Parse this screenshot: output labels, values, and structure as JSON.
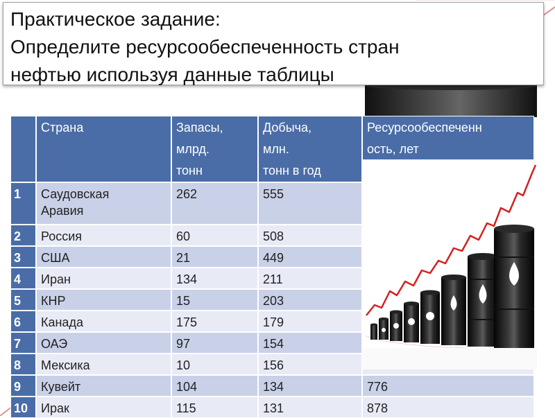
{
  "title": {
    "line1": "Практическое задание:",
    "line2": "Определите ресурсообеспеченность стран",
    "line3": "нефтью используя данные таблицы"
  },
  "table": {
    "headers": {
      "country": "Страна",
      "reserves": [
        "Запасы,",
        "млрд.",
        "тонн"
      ],
      "production": [
        "Добыча,",
        "млн.",
        "тонн в год"
      ],
      "availability": [
        "Ресурсообеспеченн",
        "ость, лет"
      ]
    },
    "rows": [
      {
        "n": "1",
        "country": [
          "Саудовская",
          "Аравия"
        ],
        "reserves": "262",
        "production": "555",
        "availability": ""
      },
      {
        "n": "2",
        "country": [
          "Россия"
        ],
        "reserves": "60",
        "production": "508",
        "availability": ""
      },
      {
        "n": "3",
        "country": [
          "США"
        ],
        "reserves": "21",
        "production": "449",
        "availability": ""
      },
      {
        "n": "4",
        "country": [
          "Иран"
        ],
        "reserves": "134",
        "production": "211",
        "availability": ""
      },
      {
        "n": "5",
        "country": [
          "КНР"
        ],
        "reserves": "15",
        "production": "203",
        "availability": ""
      },
      {
        "n": "6",
        "country": [
          "Канада"
        ],
        "reserves": "175",
        "production": "179",
        "availability": ""
      },
      {
        "n": "7",
        "country": [
          "ОАЭ"
        ],
        "reserves": "97",
        "production": "154",
        "availability": ""
      },
      {
        "n": "8",
        "country": [
          "Мексика"
        ],
        "reserves": "10",
        "production": "156",
        "availability": ""
      },
      {
        "n": "9",
        "country": [
          "Кувейт"
        ],
        "reserves": "104",
        "production": "134",
        "availability": "776"
      },
      {
        "n": "10",
        "country": [
          "Ирак"
        ],
        "reserves": "115",
        "production": "131",
        "availability": "878"
      }
    ]
  },
  "colors": {
    "header_blue": "#4a6da7",
    "row_light": "#e8ebf5",
    "row_dark": "#c9d1e8",
    "accent_red": "#d42020"
  },
  "images": {
    "illustration": "oil-barrels-growth-chart"
  }
}
